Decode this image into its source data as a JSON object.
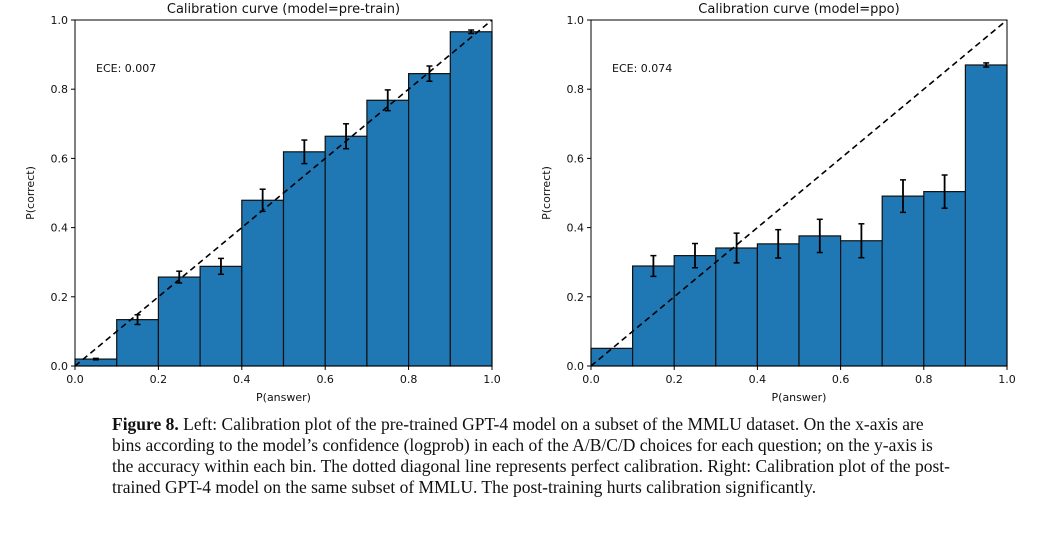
{
  "chart_data": [
    {
      "type": "bar",
      "title": "Calibration curve (model=pre-train)",
      "xlabel": "P(answer)",
      "ylabel": "P(correct)",
      "annotation": "ECE: 0.007",
      "xlim": [
        0,
        1
      ],
      "ylim": [
        0,
        1
      ],
      "xticks": [
        "0.0",
        "0.2",
        "0.4",
        "0.6",
        "0.8",
        "1.0"
      ],
      "yticks": [
        "0.0",
        "0.2",
        "0.4",
        "0.6",
        "0.8",
        "1.0"
      ],
      "bin_edges": [
        0,
        0.1,
        0.2,
        0.3,
        0.4,
        0.5,
        0.6,
        0.7,
        0.8,
        0.9,
        1.0
      ],
      "values": [
        0.02,
        0.134,
        0.257,
        0.288,
        0.479,
        0.619,
        0.664,
        0.768,
        0.845,
        0.966
      ],
      "errors": [
        0.002,
        0.014,
        0.017,
        0.023,
        0.032,
        0.034,
        0.036,
        0.03,
        0.022,
        0.005
      ],
      "diagonal": "perfect calibration (dashed)",
      "bar_color": "#1f77b4"
    },
    {
      "type": "bar",
      "title": "Calibration curve (model=ppo)",
      "xlabel": "P(answer)",
      "ylabel": "P(correct)",
      "annotation": "ECE: 0.074",
      "xlim": [
        0,
        1
      ],
      "ylim": [
        0,
        1
      ],
      "xticks": [
        "0.0",
        "0.2",
        "0.4",
        "0.6",
        "0.8",
        "1.0"
      ],
      "yticks": [
        "0.0",
        "0.2",
        "0.4",
        "0.6",
        "0.8",
        "1.0"
      ],
      "bin_edges": [
        0,
        0.1,
        0.2,
        0.3,
        0.4,
        0.5,
        0.6,
        0.7,
        0.8,
        0.9,
        1.0
      ],
      "values": [
        0.051,
        0.289,
        0.319,
        0.341,
        0.353,
        0.376,
        0.362,
        0.491,
        0.504,
        0.87
      ],
      "errors": [
        0,
        0.03,
        0.035,
        0.043,
        0.041,
        0.048,
        0.049,
        0.047,
        0.048,
        0.006
      ],
      "diagonal": "perfect calibration (dashed)",
      "bar_color": "#1f77b4"
    }
  ],
  "caption": {
    "label": "Figure 8.",
    "text": " Left: Calibration plot of the pre-trained GPT-4 model on a subset of the MMLU dataset. On the x-axis are bins according to the model’s confidence (logprob) in each of the A/B/C/D choices for each question; on the y-axis is the accuracy within each bin. The dotted diagonal line represents perfect calibration. Right: Calibration plot of the post-trained GPT-4 model on the same subset of MMLU. The post-training hurts calibration significantly."
  }
}
